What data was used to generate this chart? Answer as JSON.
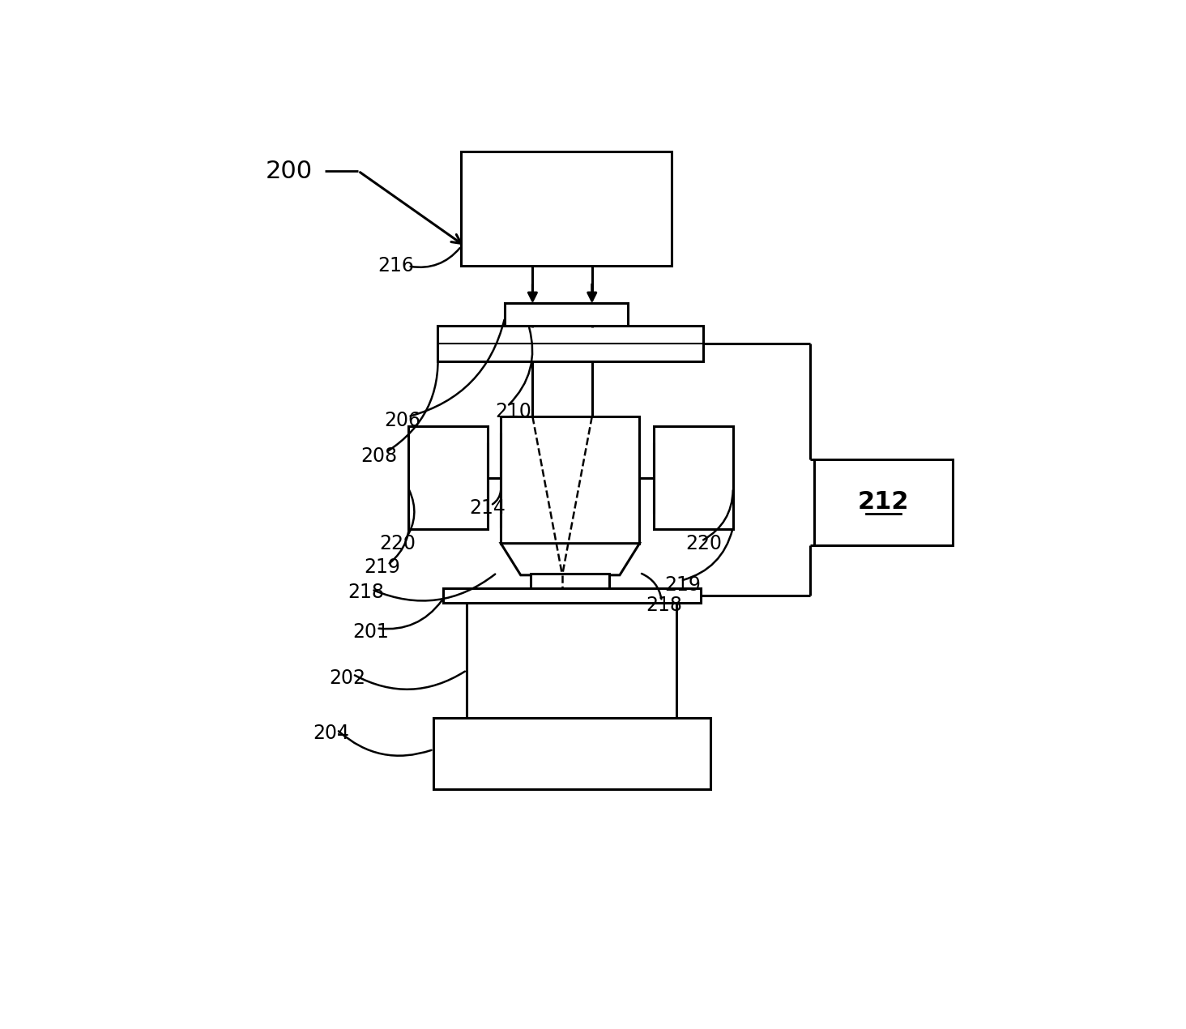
{
  "bg_color": "#ffffff",
  "line_color": "#000000",
  "lw": 2.2,
  "fig_width": 14.64,
  "fig_height": 12.7
}
